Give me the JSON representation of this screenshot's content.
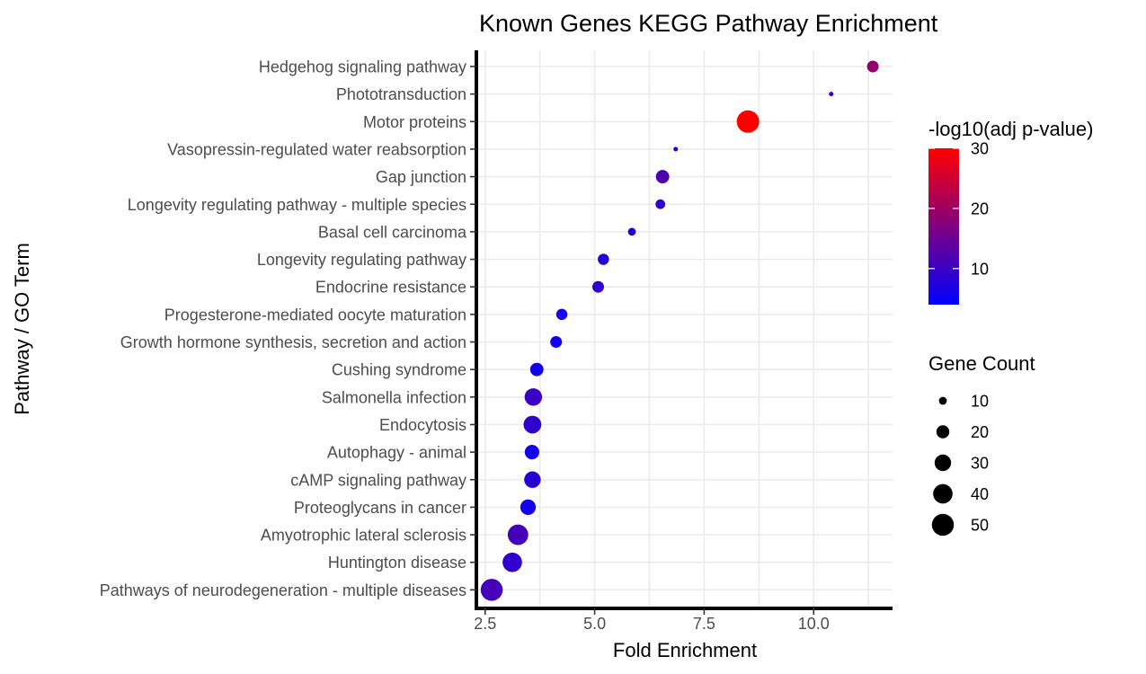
{
  "chart_data": {
    "type": "scatter",
    "title": "Known Genes KEGG Pathway Enrichment",
    "xlabel": "Fold Enrichment",
    "ylabel": "Pathway / GO Term",
    "xlim": [
      2.3,
      11.8
    ],
    "x_ticks": [
      "2.5",
      "5.0",
      "7.5",
      "10.0"
    ],
    "x_tick_values": [
      2.5,
      5.0,
      7.5,
      10.0
    ],
    "grid": true,
    "categories": [
      "Hedgehog signaling pathway",
      "Phototransduction",
      "Motor proteins",
      "Vasopressin-regulated water reabsorption",
      "Gap junction",
      "Longevity regulating pathway - multiple species",
      "Basal cell carcinoma",
      "Longevity regulating pathway",
      "Endocrine resistance",
      "Progesterone-mediated oocyte maturation",
      "Growth hormone synthesis, secretion and action",
      "Cushing syndrome",
      "Salmonella infection",
      "Endocytosis",
      "Autophagy - animal",
      "cAMP signaling pathway",
      "Proteoglycans in cancer",
      "Amyotrophic lateral sclerosis",
      "Huntington disease",
      "Pathways of neurodegeneration - multiple diseases"
    ],
    "points": [
      {
        "pathway": "Hedgehog signaling pathway",
        "fold_enrichment": 11.35,
        "neg_log10_padj": 19,
        "gene_count": 17
      },
      {
        "pathway": "Phototransduction",
        "fold_enrichment": 10.4,
        "neg_log10_padj": 9,
        "gene_count": 6
      },
      {
        "pathway": "Motor proteins",
        "fold_enrichment": 8.5,
        "neg_log10_padj": 30,
        "gene_count": 52
      },
      {
        "pathway": "Vasopressin-regulated water reabsorption",
        "fold_enrichment": 6.85,
        "neg_log10_padj": 6,
        "gene_count": 6
      },
      {
        "pathway": "Gap junction",
        "fold_enrichment": 6.55,
        "neg_log10_padj": 12,
        "gene_count": 21
      },
      {
        "pathway": "Longevity regulating pathway - multiple species",
        "fold_enrichment": 6.5,
        "neg_log10_padj": 9,
        "gene_count": 13
      },
      {
        "pathway": "Basal cell carcinoma",
        "fold_enrichment": 5.85,
        "neg_log10_padj": 7,
        "gene_count": 10
      },
      {
        "pathway": "Longevity regulating pathway",
        "fold_enrichment": 5.2,
        "neg_log10_padj": 8,
        "gene_count": 16
      },
      {
        "pathway": "Endocrine resistance",
        "fold_enrichment": 5.08,
        "neg_log10_padj": 9,
        "gene_count": 17
      },
      {
        "pathway": "Progesterone-mediated oocyte maturation",
        "fold_enrichment": 4.25,
        "neg_log10_padj": 6,
        "gene_count": 16
      },
      {
        "pathway": "Growth hormone synthesis, secretion and action",
        "fold_enrichment": 4.12,
        "neg_log10_padj": 6,
        "gene_count": 17
      },
      {
        "pathway": "Cushing syndrome",
        "fold_enrichment": 3.68,
        "neg_log10_padj": 6,
        "gene_count": 21
      },
      {
        "pathway": "Salmonella infection",
        "fold_enrichment": 3.6,
        "neg_log10_padj": 10,
        "gene_count": 33
      },
      {
        "pathway": "Endocytosis",
        "fold_enrichment": 3.58,
        "neg_log10_padj": 9,
        "gene_count": 34
      },
      {
        "pathway": "Autophagy - animal",
        "fold_enrichment": 3.57,
        "neg_log10_padj": 6,
        "gene_count": 24
      },
      {
        "pathway": "cAMP signaling pathway",
        "fold_enrichment": 3.58,
        "neg_log10_padj": 8,
        "gene_count": 30
      },
      {
        "pathway": "Proteoglycans in cancer",
        "fold_enrichment": 3.48,
        "neg_log10_padj": 6,
        "gene_count": 27
      },
      {
        "pathway": "Amyotrophic lateral sclerosis",
        "fold_enrichment": 3.25,
        "neg_log10_padj": 11,
        "gene_count": 44
      },
      {
        "pathway": "Huntington disease",
        "fold_enrichment": 3.12,
        "neg_log10_padj": 9,
        "gene_count": 40
      },
      {
        "pathway": "Pathways of neurodegeneration - multiple diseases",
        "fold_enrichment": 2.65,
        "neg_log10_padj": 11,
        "gene_count": 50
      }
    ],
    "color_legend": {
      "title": "-log10(adj p-value)",
      "range": [
        4,
        30
      ],
      "ticks": [
        10,
        20,
        30
      ],
      "tick_labels": [
        "10",
        "20",
        "30"
      ],
      "low_color": "#0000ff",
      "high_color": "#ff0000"
    },
    "size_legend": {
      "title": "Gene Count",
      "values": [
        10,
        20,
        30,
        40,
        50
      ],
      "labels": [
        "10",
        "20",
        "30",
        "40",
        "50"
      ],
      "size_range": [
        6,
        52
      ]
    }
  }
}
